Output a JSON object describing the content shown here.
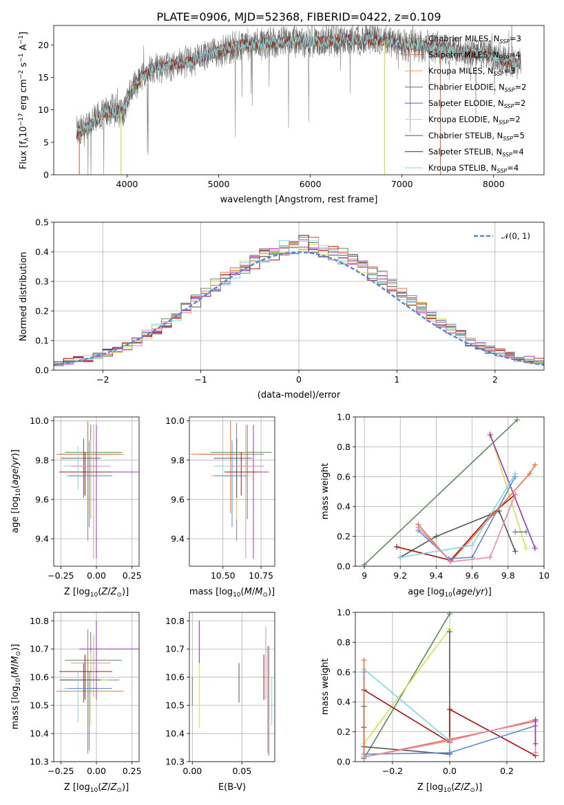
{
  "figure": {
    "title": "PLATE=0906, MJD=52368, FIBERID=0422, z=0.109"
  },
  "chart_data": [
    {
      "type": "line",
      "xlabel": "wavelength [Angstrom, rest frame]",
      "ylabel": "Flux [f_λ 10^-17 erg cm^-2 s^-1 A^-1]",
      "xlim": [
        3200,
        8550
      ],
      "ylim": [
        0,
        23
      ],
      "xticks": [
        4000,
        5000,
        6000,
        7000,
        8000
      ],
      "yticks": [
        0,
        5,
        10,
        15,
        20
      ],
      "grid": false,
      "legend_position": "top-right",
      "continuum": {
        "x": [
          3450,
          3550,
          3650,
          3750,
          3850,
          3950,
          4050,
          4150,
          4300,
          4500,
          4700,
          4900,
          5100,
          5300,
          5500,
          5800,
          6100,
          6400,
          6700,
          7000,
          7300,
          7600,
          7900,
          8150,
          8300
        ],
        "y": [
          6.5,
          7.0,
          8.5,
          9.5,
          10.0,
          9.5,
          13.0,
          15.0,
          16.5,
          17.0,
          17.5,
          18.5,
          19.5,
          20.0,
          20.2,
          20.5,
          20.5,
          20.8,
          20.8,
          20.0,
          19.8,
          19.2,
          18.5,
          17.5,
          17.0
        ]
      },
      "series": [
        {
          "name": "Chabrier MILES, N_SSP=3",
          "color": "#808080"
        },
        {
          "name": "Salpeter MILES, N_SSP=4",
          "color": "#e8743b"
        },
        {
          "name": "Kroupa MILES, N_SSP=3",
          "color": "#f0a030"
        },
        {
          "name": "Chabrier ELODIE, N_SSP=2",
          "color": "#5a8a5a"
        },
        {
          "name": "Salpeter ELODIE, N_SSP=2",
          "color": "#9933bb"
        },
        {
          "name": "Kroupa ELODIE, N_SSP=2",
          "color": "#d4e04a"
        },
        {
          "name": "Chabrier STELIB, N_SSP=5",
          "color": "#555555"
        },
        {
          "name": "Salpeter STELIB, N_SSP=4",
          "color": "#aa1111"
        },
        {
          "name": "Kroupa STELIB, N_SSP=4",
          "color": "#7fd6e0"
        }
      ]
    },
    {
      "type": "histogram",
      "xlabel": "(data-model)/error",
      "ylabel": "Normed distribution",
      "xlim": [
        -2.5,
        2.5
      ],
      "ylim": [
        0,
        0.5
      ],
      "xticks": [
        -2,
        -1,
        0,
        1,
        2
      ],
      "yticks": [
        0.0,
        0.1,
        0.2,
        0.3,
        0.4,
        0.5
      ],
      "grid": true,
      "bin_edges_start": -2.5,
      "bin_width": 0.1,
      "reference_curve": {
        "name": "𝒩(0, 1)",
        "color": "#5b86d6",
        "style": "dashed"
      },
      "legend_position": "top-right",
      "base_profile": [
        0.024,
        0.031,
        0.036,
        0.04,
        0.05,
        0.06,
        0.07,
        0.08,
        0.095,
        0.12,
        0.14,
        0.16,
        0.185,
        0.21,
        0.235,
        0.26,
        0.285,
        0.31,
        0.33,
        0.355,
        0.37,
        0.385,
        0.4,
        0.41,
        0.42,
        0.425,
        0.42,
        0.41,
        0.4,
        0.385,
        0.37,
        0.35,
        0.33,
        0.31,
        0.285,
        0.26,
        0.235,
        0.21,
        0.185,
        0.16,
        0.14,
        0.12,
        0.095,
        0.08,
        0.07,
        0.06,
        0.05,
        0.04,
        0.035,
        0.03
      ],
      "series_colors": [
        "#808080",
        "#e8743b",
        "#5a8a5a",
        "#9933bb",
        "#d4e04a",
        "#555555",
        "#aa1111",
        "#7fd6e0",
        "#e888b0"
      ]
    },
    {
      "type": "scatter",
      "xlabel": "Z [log10(Z/Z⊙)]",
      "ylabel": "age [log10(age/yr)]",
      "xlim": [
        -0.3,
        0.3
      ],
      "ylim": [
        9.26,
        10.02
      ],
      "xticks": [
        -0.25,
        0.0,
        0.25
      ],
      "xticklabels": [
        "−0.25",
        "0.00",
        "0.25"
      ],
      "yticks": [
        9.4,
        9.6,
        9.8,
        10.0
      ],
      "grid": true,
      "points": [
        {
          "x": -0.06,
          "y": 9.83,
          "xerr": [
            0.2,
            0.22
          ],
          "yerr": [
            0.44,
            0.16
          ],
          "color": "#808080"
        },
        {
          "x": -0.06,
          "y": 9.83,
          "xerr": [
            0.22,
            0.25
          ],
          "yerr": [
            0.3,
            0.17
          ],
          "color": "#e8743b"
        },
        {
          "x": -0.04,
          "y": 9.84,
          "xerr": [
            0.18,
            0.22
          ],
          "yerr": [
            0.34,
            0.14
          ],
          "color": "#5a8a5a"
        },
        {
          "x": 0.0,
          "y": 9.74,
          "xerr": [
            0.12,
            0.3
          ],
          "yerr": [
            0.44,
            0.24
          ],
          "color": "#9933bb"
        },
        {
          "x": -0.04,
          "y": 9.72,
          "xerr": [
            0.17,
            0.12
          ],
          "yerr": [
            0.22,
            0.18
          ],
          "color": "#d4e04a"
        },
        {
          "x": -0.09,
          "y": 9.81,
          "xerr": [
            0.16,
            0.12
          ],
          "yerr": [
            0.2,
            0.1
          ],
          "color": "#555555"
        },
        {
          "x": -0.08,
          "y": 9.74,
          "xerr": [
            0.18,
            0.19
          ],
          "yerr": [
            0.12,
            0.1
          ],
          "color": "#aa1111"
        },
        {
          "x": -0.13,
          "y": 9.77,
          "xerr": [
            0.1,
            0.14
          ],
          "yerr": [
            0.12,
            0.1
          ],
          "color": "#7fd6e0"
        },
        {
          "x": -0.02,
          "y": 9.77,
          "xerr": [
            0.16,
            0.12
          ],
          "yerr": [
            0.47,
            0.21
          ],
          "color": "#e888b0"
        },
        {
          "x": -0.05,
          "y": 9.72,
          "xerr": [
            0.15,
            0.16
          ],
          "yerr": [
            0.26,
            0.18
          ],
          "color": "#5b86d6"
        }
      ]
    },
    {
      "type": "scatter",
      "xlabel": "mass [log10(M/M⊙)]",
      "xlim": [
        10.28,
        10.84
      ],
      "ylim": [
        9.26,
        10.02
      ],
      "xticks": [
        10.5,
        10.75
      ],
      "xticklabels": [
        "10.50",
        "10.75"
      ],
      "yticks": [
        9.4,
        9.6,
        9.8,
        10.0
      ],
      "grid": true,
      "points": [
        {
          "x": 10.59,
          "y": 9.83,
          "xerr": [
            0.25,
            0.18
          ],
          "yerr": [
            0.44,
            0.16
          ],
          "color": "#808080"
        },
        {
          "x": 10.55,
          "y": 9.83,
          "xerr": [
            0.26,
            0.12
          ],
          "yerr": [
            0.3,
            0.17
          ],
          "color": "#e8743b"
        },
        {
          "x": 10.66,
          "y": 9.84,
          "xerr": [
            0.24,
            0.16
          ],
          "yerr": [
            0.34,
            0.14
          ],
          "color": "#5a8a5a"
        },
        {
          "x": 10.7,
          "y": 9.74,
          "xerr": [
            0.12,
            0.1
          ],
          "yerr": [
            0.44,
            0.24
          ],
          "color": "#9933bb"
        },
        {
          "x": 10.59,
          "y": 9.72,
          "xerr": [
            0.17,
            0.1
          ],
          "yerr": [
            0.22,
            0.18
          ],
          "color": "#d4e04a"
        },
        {
          "x": 10.59,
          "y": 9.81,
          "xerr": [
            0.15,
            0.1
          ],
          "yerr": [
            0.2,
            0.1
          ],
          "color": "#555555"
        },
        {
          "x": 10.62,
          "y": 9.74,
          "xerr": [
            0.11,
            0.12
          ],
          "yerr": [
            0.12,
            0.1
          ],
          "color": "#aa1111"
        },
        {
          "x": 10.56,
          "y": 9.77,
          "xerr": [
            0.12,
            0.1
          ],
          "yerr": [
            0.12,
            0.1
          ],
          "color": "#7fd6e0"
        },
        {
          "x": 10.65,
          "y": 9.77,
          "xerr": [
            0.1,
            0.12
          ],
          "yerr": [
            0.47,
            0.21
          ],
          "color": "#e888b0"
        },
        {
          "x": 10.56,
          "y": 9.72,
          "xerr": [
            0.12,
            0.1
          ],
          "yerr": [
            0.26,
            0.18
          ],
          "color": "#5b86d6"
        }
      ]
    },
    {
      "type": "line",
      "xlabel": "age [log10(age/yr)]",
      "ylabel": "mass weight",
      "xlim": [
        8.95,
        10.0
      ],
      "ylim": [
        0,
        1.0
      ],
      "xticks": [
        9.0,
        9.2,
        9.4,
        9.6,
        9.8,
        10.0
      ],
      "yticks": [
        0.0,
        0.2,
        0.4,
        0.6,
        0.8,
        1.0
      ],
      "grid": true,
      "series": [
        {
          "color": "#5a8a5a",
          "x": [
            9.0,
            9.85
          ],
          "y": [
            0.01,
            0.98
          ]
        },
        {
          "color": "#d4e04a",
          "x": [
            9.7,
            9.9
          ],
          "y": [
            0.89,
            0.12
          ]
        },
        {
          "color": "#9933bb",
          "x": [
            9.7,
            9.95
          ],
          "y": [
            0.88,
            0.12
          ]
        },
        {
          "color": "#555555",
          "x": [
            9.2,
            9.4,
            9.75,
            9.84
          ],
          "y": [
            0.06,
            0.2,
            0.37,
            0.1
          ]
        },
        {
          "color": "#aa1111",
          "x": [
            9.18,
            9.48,
            9.7,
            9.84
          ],
          "y": [
            0.13,
            0.04,
            0.34,
            0.48
          ]
        },
        {
          "color": "#5b86d6",
          "x": [
            9.3,
            9.47,
            9.6,
            9.84
          ],
          "y": [
            0.24,
            0.05,
            0.06,
            0.6
          ]
        },
        {
          "color": "#e8743b",
          "x": [
            9.3,
            9.48,
            9.72,
            9.92,
            9.95
          ],
          "y": [
            0.28,
            0.03,
            0.35,
            0.62,
            0.68
          ]
        },
        {
          "color": "#7fd6e0",
          "x": [
            9.2,
            9.6,
            9.84
          ],
          "y": [
            0.06,
            0.14,
            0.62
          ]
        },
        {
          "color": "#e888b0",
          "x": [
            9.3,
            9.48,
            9.7,
            9.84
          ],
          "y": [
            0.26,
            0.03,
            0.06,
            0.48
          ]
        },
        {
          "color": "#808080",
          "x": [
            9.84,
            9.9
          ],
          "y": [
            0.23,
            0.23
          ]
        }
      ]
    },
    {
      "type": "scatter",
      "xlabel": "Z [log10(Z/Z⊙)]",
      "ylabel": "mass [log10(M/M⊙)]",
      "xlim": [
        -0.3,
        0.3
      ],
      "ylim": [
        10.3,
        10.83
      ],
      "xticks": [
        -0.25,
        0.0,
        0.25
      ],
      "xticklabels": [
        "−0.25",
        "0.00",
        "0.25"
      ],
      "yticks": [
        10.3,
        10.4,
        10.5,
        10.6,
        10.7,
        10.8
      ],
      "grid": true,
      "points": [
        {
          "x": -0.06,
          "y": 10.59,
          "xerr": [
            0.2,
            0.22
          ],
          "yerr": [
            0.26,
            0.18
          ],
          "color": "#808080"
        },
        {
          "x": -0.06,
          "y": 10.55,
          "xerr": [
            0.22,
            0.25
          ],
          "yerr": [
            0.22,
            0.1
          ],
          "color": "#e8743b"
        },
        {
          "x": -0.04,
          "y": 10.66,
          "xerr": [
            0.18,
            0.22
          ],
          "yerr": [
            0.12,
            0.1
          ],
          "color": "#5a8a5a"
        },
        {
          "x": 0.0,
          "y": 10.7,
          "xerr": [
            0.12,
            0.3
          ],
          "yerr": [
            0.18,
            0.1
          ],
          "color": "#9933bb"
        },
        {
          "x": -0.04,
          "y": 10.59,
          "xerr": [
            0.17,
            0.12
          ],
          "yerr": [
            0.16,
            0.1
          ],
          "color": "#d4e04a"
        },
        {
          "x": -0.09,
          "y": 10.59,
          "xerr": [
            0.16,
            0.12
          ],
          "yerr": [
            0.08,
            0.06
          ],
          "color": "#555555"
        },
        {
          "x": -0.08,
          "y": 10.62,
          "xerr": [
            0.18,
            0.19
          ],
          "yerr": [
            0.1,
            0.06
          ],
          "color": "#aa1111"
        },
        {
          "x": -0.13,
          "y": 10.56,
          "xerr": [
            0.1,
            0.14
          ],
          "yerr": [
            0.12,
            0.06
          ],
          "color": "#7fd6e0"
        },
        {
          "x": -0.02,
          "y": 10.65,
          "xerr": [
            0.16,
            0.12
          ],
          "yerr": [
            0.12,
            0.1
          ],
          "color": "#e888b0"
        },
        {
          "x": -0.05,
          "y": 10.56,
          "xerr": [
            0.15,
            0.16
          ],
          "yerr": [
            0.22,
            0.06
          ],
          "color": "#5b86d6"
        }
      ]
    },
    {
      "type": "scatter",
      "xlabel": "E(B-V)",
      "xlim": [
        -0.003,
        0.083
      ],
      "ylim": [
        10.3,
        10.83
      ],
      "xticks": [
        0.0,
        0.05
      ],
      "xticklabels": [
        "0.00",
        "0.05"
      ],
      "yticks": [
        10.3,
        10.4,
        10.5,
        10.6,
        10.7,
        10.8
      ],
      "grid": true,
      "points": [
        {
          "x": 0.0,
          "y": 10.55,
          "yerr": [
            0.05,
            0.05
          ],
          "color": "#5a8a5a"
        },
        {
          "x": 0.007,
          "y": 10.62,
          "yerr": [
            0.2,
            0.18
          ],
          "color": "#d4e04a"
        },
        {
          "x": 0.007,
          "y": 10.7,
          "yerr": [
            0.05,
            0.1
          ],
          "color": "#9933bb"
        },
        {
          "x": 0.047,
          "y": 10.58,
          "yerr": [
            0.07,
            0.07
          ],
          "color": "#555555"
        },
        {
          "x": 0.072,
          "y": 10.6,
          "yerr": [
            0.08,
            0.08
          ],
          "color": "#aa1111"
        },
        {
          "x": 0.074,
          "y": 10.65,
          "yerr": [
            0.13,
            0.13
          ],
          "color": "#e888b0"
        },
        {
          "x": 0.076,
          "y": 10.55,
          "yerr": [
            0.22,
            0.16
          ],
          "color": "#e8743b"
        },
        {
          "x": 0.077,
          "y": 10.6,
          "yerr": [
            0.28,
            0.11
          ],
          "color": "#5b86d6"
        },
        {
          "x": 0.08,
          "y": 10.52,
          "yerr": [
            0.09,
            0.08
          ],
          "color": "#7fd6e0"
        }
      ]
    },
    {
      "type": "line",
      "xlabel": "Z [log10(Z/Z⊙)]",
      "ylabel": "mass weight",
      "xlim": [
        -0.33,
        0.33
      ],
      "ylim": [
        0,
        1.0
      ],
      "xticks": [
        -0.2,
        0.0,
        0.2
      ],
      "xticklabels": [
        "−0.2",
        "0.0",
        "0.2"
      ],
      "yticks": [
        0.0,
        0.2,
        0.4,
        0.6,
        0.8,
        1.0
      ],
      "grid": true,
      "series": [
        {
          "color": "#5a8a5a",
          "x": [
            -0.3,
            0.0
          ],
          "y": [
            0.02,
            0.99
          ]
        },
        {
          "color": "#d4e04a",
          "x": [
            -0.3,
            0.0
          ],
          "y": [
            0.12,
            0.89
          ]
        },
        {
          "color": "#555555",
          "x": [
            -0.3,
            -0.3,
            -0.3,
            -0.3,
            0.0,
            0.0
          ],
          "y": [
            0.1,
            0.23,
            0.37,
            0.1,
            0.05,
            0.87
          ]
        },
        {
          "color": "#aa1111",
          "x": [
            -0.3,
            0.0,
            0.0,
            0.3
          ],
          "y": [
            0.48,
            0.13,
            0.35,
            0.04
          ]
        },
        {
          "color": "#7fd6e0",
          "x": [
            -0.3,
            0.0,
            0.0
          ],
          "y": [
            0.62,
            0.14,
            0.06
          ]
        },
        {
          "color": "#5b86d6",
          "x": [
            -0.3,
            -0.3,
            0.0,
            0.3
          ],
          "y": [
            0.6,
            0.05,
            0.06,
            0.24
          ]
        },
        {
          "color": "#e8743b",
          "x": [
            -0.3,
            -0.3,
            0.0,
            0.3
          ],
          "y": [
            0.68,
            0.03,
            0.15,
            0.27
          ]
        },
        {
          "color": "#e888b0",
          "x": [
            -0.3,
            0.0,
            0.3,
            0.3
          ],
          "y": [
            0.03,
            0.14,
            0.28,
            0.06
          ]
        },
        {
          "color": "#9933bb",
          "x": [
            0.3,
            0.3
          ],
          "y": [
            0.12,
            0.28
          ]
        }
      ]
    }
  ]
}
